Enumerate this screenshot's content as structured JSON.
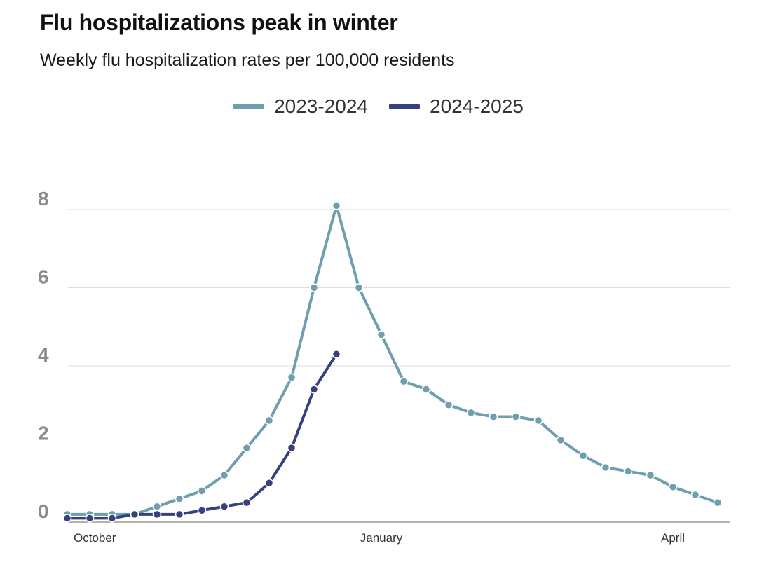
{
  "header": {
    "title": "Flu hospitalizations peak in winter",
    "subtitle": "Weekly flu hospitalization rates per 100,000 residents"
  },
  "chart_data": {
    "type": "line",
    "title": "Flu hospitalizations peak in winter",
    "subtitle": "Weekly flu hospitalization rates per 100,000 residents",
    "xlabel": "",
    "ylabel": "",
    "ylim": [
      0,
      8
    ],
    "yticks": [
      0,
      2,
      4,
      6,
      8
    ],
    "x_tick_labels": [
      {
        "label": "October",
        "week": 1
      },
      {
        "label": "January",
        "week": 14
      },
      {
        "label": "April",
        "week": 27
      }
    ],
    "grid": true,
    "legend_position": "top-center",
    "series": [
      {
        "name": "2023-2024",
        "color": "#6f9fae",
        "values": [
          0.2,
          0.2,
          0.2,
          0.2,
          0.4,
          0.6,
          0.8,
          1.2,
          1.9,
          2.6,
          3.7,
          6.0,
          8.1,
          6.0,
          4.8,
          3.6,
          3.4,
          3.0,
          2.8,
          2.7,
          2.7,
          2.6,
          2.1,
          1.7,
          1.4,
          1.3,
          1.2,
          0.9,
          0.7,
          0.5
        ]
      },
      {
        "name": "2024-2025",
        "color": "#37417f",
        "values": [
          0.1,
          0.1,
          0.1,
          0.2,
          0.2,
          0.2,
          0.3,
          0.4,
          0.5,
          1.0,
          1.9,
          3.4,
          4.3
        ]
      }
    ]
  }
}
